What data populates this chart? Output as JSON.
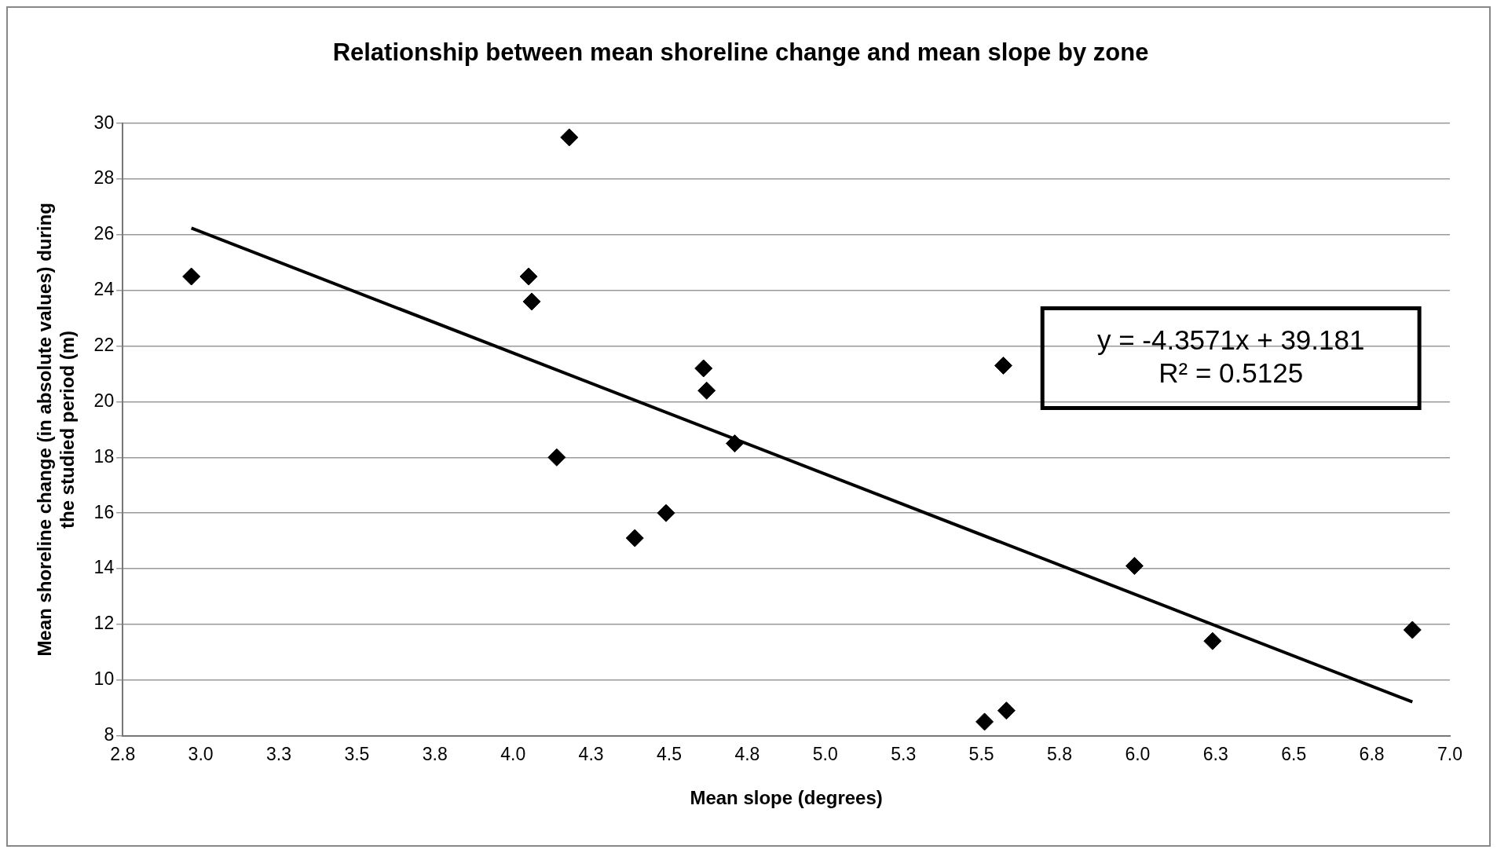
{
  "chart_data": {
    "type": "scatter",
    "title": "Relationship between mean shoreline change and mean slope by zone",
    "xlabel": "Mean slope (degrees)",
    "ylabel": "Mean shoreline change (in absolute values) during the studied period (m)",
    "series": [
      {
        "type": "scatter",
        "color": "#000000",
        "marker": "diamond",
        "x": [
          2.97,
          4.05,
          4.06,
          4.18,
          4.14,
          4.39,
          4.49,
          4.61,
          4.62,
          4.71,
          5.51,
          5.58,
          5.57,
          5.99,
          6.24,
          6.88
        ],
        "values": [
          24.5,
          24.5,
          23.6,
          29.5,
          18.0,
          15.1,
          16.0,
          21.2,
          20.4,
          18.5,
          8.5,
          8.9,
          21.3,
          14.1,
          11.4,
          11.8
        ]
      },
      {
        "type": "line",
        "color": "#000000",
        "marker": "none",
        "x": [
          2.97,
          6.88
        ],
        "values": [
          26.24,
          9.21
        ]
      }
    ],
    "annotations": [
      "y = -4.3571x + 39.181",
      "R² = 0.5125"
    ],
    "xlim": [
      2.75,
      7.0
    ],
    "xticks": [
      {
        "value": 2.75,
        "label": "2.8"
      },
      {
        "value": 3,
        "label": "3.0"
      },
      {
        "value": 3.25,
        "label": "3.3"
      },
      3.5,
      {
        "value": 3.75,
        "label": "3.8"
      },
      {
        "value": 4,
        "label": "4.0"
      },
      {
        "value": 4.25,
        "label": "4.3"
      },
      4.5,
      {
        "value": 4.75,
        "label": "4.8"
      },
      {
        "value": 5,
        "label": "5.0"
      },
      {
        "value": 5.25,
        "label": "5.3"
      },
      5.5,
      {
        "value": 5.75,
        "label": "5.8"
      },
      {
        "value": 6,
        "label": "6.0"
      },
      {
        "value": 6.25,
        "label": "6.3"
      },
      6.5,
      {
        "value": 6.75,
        "label": "6.8"
      },
      {
        "value": 7,
        "label": "7.0"
      }
    ],
    "ylim": [
      8,
      30
    ],
    "yticks": [
      8,
      10,
      12,
      14,
      16,
      18,
      20,
      22,
      24,
      26,
      28,
      30
    ],
    "grid": "y",
    "legend": false
  }
}
